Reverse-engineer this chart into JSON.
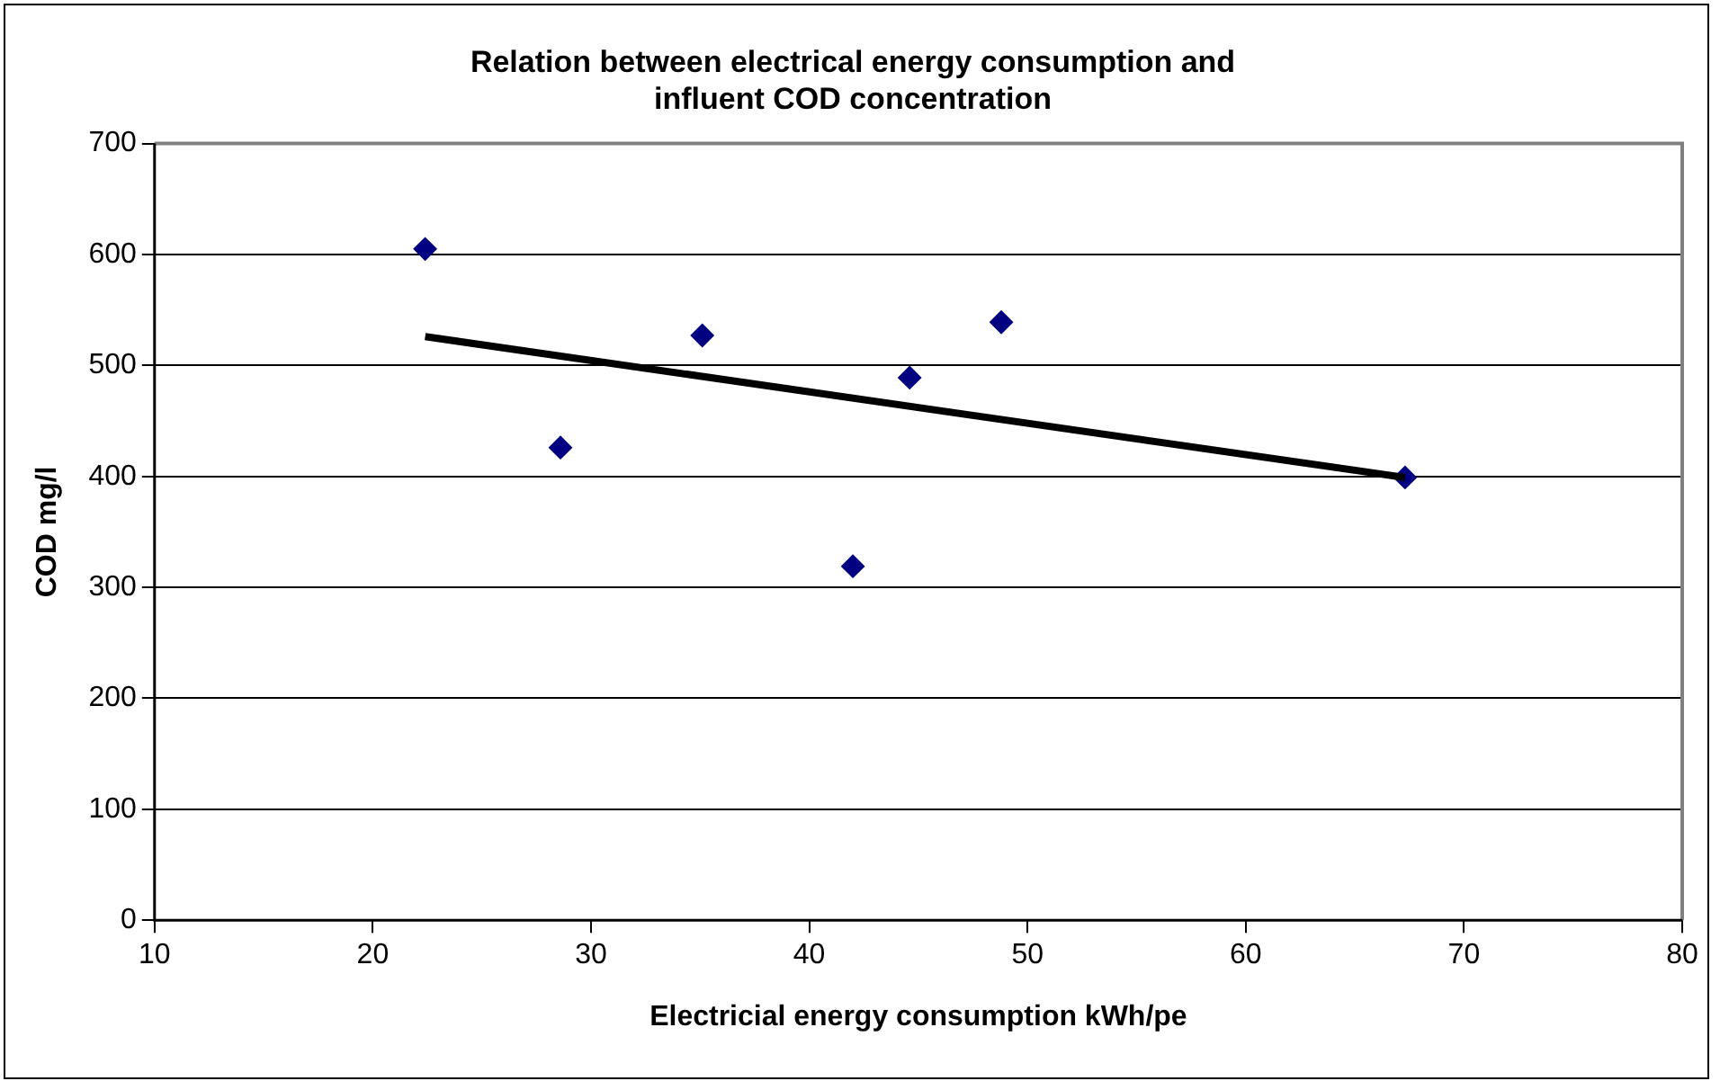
{
  "chart_data": {
    "type": "scatter",
    "title": "Relation between electrical energy consumption and\ninfluent COD concentration",
    "xlabel": "Electricial energy consumption kWh/pe",
    "ylabel": "COD mg/l",
    "x": [
      22.4,
      28.6,
      35.1,
      42.0,
      44.6,
      48.8,
      67.3
    ],
    "series": [
      {
        "color": "#000080",
        "values": [
          605,
          426,
          527,
          319,
          489,
          539,
          399
        ]
      },
      {
        "type": "line",
        "marker": "none",
        "color": "#000000",
        "x": [
          22.4,
          67.3
        ],
        "values": [
          526,
          399
        ]
      }
    ],
    "xlim": [
      10,
      80
    ],
    "xticks": [
      10,
      20,
      30,
      40,
      50,
      60,
      70,
      80
    ],
    "ylim": [
      0,
      700
    ],
    "yticks": [
      0,
      100,
      200,
      300,
      400,
      500,
      600,
      700
    ],
    "grid": "y",
    "marker": "diamond",
    "legend": false
  }
}
